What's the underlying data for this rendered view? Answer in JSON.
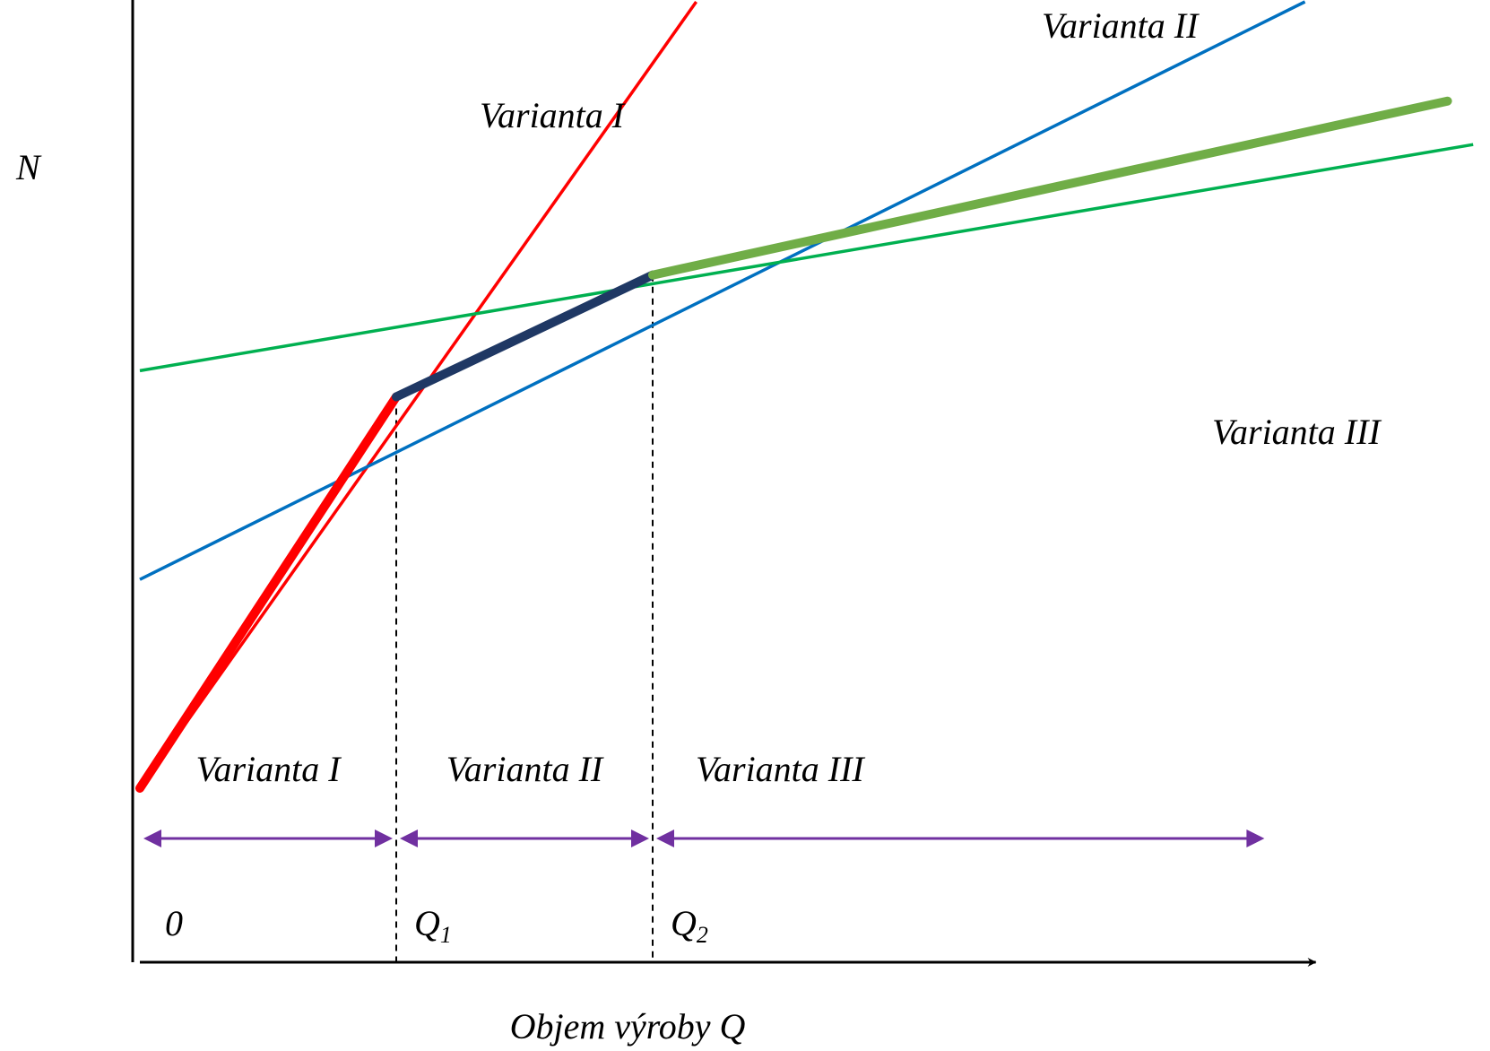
{
  "chart_data": {
    "type": "line",
    "title": "",
    "xlabel": "Objem výroby Q",
    "ylabel": "N",
    "x_ticks": [
      {
        "label": "0",
        "sub": "",
        "x": 0
      },
      {
        "label": "Q",
        "sub": "1",
        "x": 1
      },
      {
        "label": "Q",
        "sub": "2",
        "x": 2
      }
    ],
    "xlim": [
      0,
      4.6
    ],
    "ylim": [
      0,
      6.1
    ],
    "series": [
      {
        "name": "Varianta I",
        "color": "#ff0000",
        "points": [
          [
            0,
            1.0
          ],
          [
            2.4,
            6.0
          ]
        ]
      },
      {
        "name": "Varianta II",
        "color": "#0070c0",
        "points": [
          [
            0,
            2.2
          ],
          [
            5.2,
            6.0
          ]
        ]
      },
      {
        "name": "Varianta III",
        "color": "#00b050",
        "points": [
          [
            0,
            3.4
          ],
          [
            5.2,
            4.7
          ]
        ]
      }
    ],
    "envelope": [
      {
        "color": "#ff0000",
        "points": [
          [
            0,
            1.0
          ],
          [
            1.0,
            3.25
          ]
        ]
      },
      {
        "color": "#1f3864",
        "points": [
          [
            1.0,
            3.25
          ],
          [
            2.0,
            3.95
          ]
        ]
      },
      {
        "color": "#70ad47",
        "points": [
          [
            2.0,
            3.95
          ],
          [
            5.1,
            4.95
          ]
        ]
      }
    ],
    "regions": [
      {
        "label": "Varianta I",
        "from": 0,
        "to": 1
      },
      {
        "label": "Varianta II",
        "from": 1,
        "to": 2
      },
      {
        "label": "Varianta III",
        "from": 2,
        "to": 4.4
      }
    ],
    "colors": {
      "axis": "#000000",
      "arrow": "#7030a0",
      "guide": "#000000"
    }
  }
}
